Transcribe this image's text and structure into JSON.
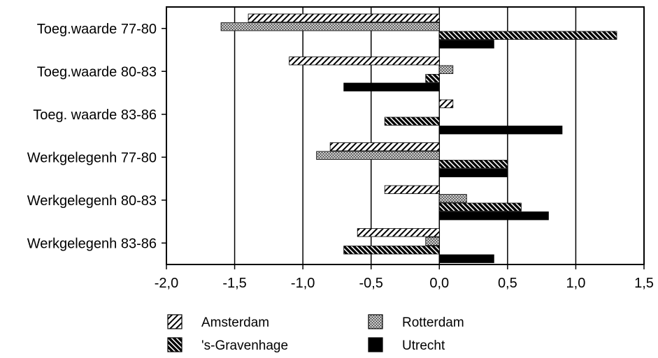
{
  "chart_data": {
    "type": "bar",
    "orientation": "horizontal",
    "categories": [
      "Toeg.waarde 77-80",
      "Toeg.waarde 80-83",
      "Toeg. waarde 83-86",
      "Werkgelegenh 77-80",
      "Werkgelegenh 80-83",
      "Werkgelegenh 83-86"
    ],
    "series": [
      {
        "name": "Amsterdam",
        "pattern": "diag-light",
        "values": [
          -1.4,
          -1.1,
          0.1,
          -0.8,
          -0.4,
          -0.6
        ]
      },
      {
        "name": "Rotterdam",
        "pattern": "speckle",
        "values": [
          -1.6,
          0.1,
          0.0,
          -0.9,
          0.2,
          -0.1
        ]
      },
      {
        "name": "'s-Gravenhage",
        "pattern": "diag-dark",
        "values": [
          1.3,
          -0.1,
          -0.4,
          0.5,
          0.6,
          -0.7
        ]
      },
      {
        "name": "Utrecht",
        "pattern": "solid",
        "values": [
          0.4,
          -0.7,
          0.9,
          0.5,
          0.8,
          0.4
        ]
      }
    ],
    "xlim": [
      -2.0,
      1.5
    ],
    "xticks": [
      -2.0,
      -1.5,
      -1.0,
      -0.5,
      0.0,
      0.5,
      1.0,
      1.5
    ],
    "xtick_labels": [
      "-2,0",
      "-1,5",
      "-1,0",
      "-0,5",
      "0,0",
      "0,5",
      "1,0",
      "1,5"
    ],
    "grid": "vertical",
    "legend_position": "bottom",
    "colors": {
      "ink": "#000000",
      "background": "#ffffff"
    }
  }
}
